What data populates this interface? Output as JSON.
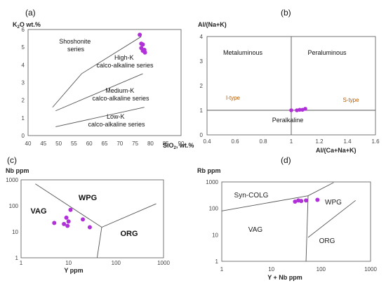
{
  "chart_data": [
    {
      "id": "a",
      "panel_label": "(a)",
      "type": "scatter",
      "xlabel_main": "SiO",
      "xlabel_sub": "2",
      "xlabel_unit": ", wt.%",
      "ylabel_main": "K",
      "ylabel_sub": "2",
      "ylabel_unit": "O  wt.%",
      "xlim": [
        40,
        90
      ],
      "ylim": [
        0,
        6
      ],
      "xticks": [
        40,
        45,
        50,
        55,
        60,
        65,
        70,
        75,
        80,
        85,
        90
      ],
      "yticks": [
        0,
        1,
        2,
        3,
        4,
        5,
        6
      ],
      "boundaries": [
        [
          [
            48,
            1.6
          ],
          [
            57.5,
            3.5
          ],
          [
            77,
            5.6
          ]
        ],
        [
          [
            49,
            1.4
          ],
          [
            77.5,
            3.5
          ]
        ],
        [
          [
            49,
            0.5
          ],
          [
            78,
            1.6
          ]
        ]
      ],
      "regions": [
        {
          "lines": [
            "Shoshonite",
            "series"
          ]
        },
        {
          "lines": [
            "High-K",
            "calco-alkaline series"
          ]
        },
        {
          "lines": [
            "Medium-K",
            "calco-alkaline series"
          ]
        },
        {
          "lines": [
            "Low-K",
            "calco-alkaline series"
          ]
        }
      ],
      "points": [
        [
          76.5,
          5.7
        ],
        [
          77.0,
          5.2
        ],
        [
          77.5,
          5.15
        ],
        [
          77.0,
          4.95
        ],
        [
          78.0,
          4.85
        ],
        [
          77.5,
          4.8
        ],
        [
          78.2,
          4.7
        ]
      ]
    },
    {
      "id": "b",
      "panel_label": "(b)",
      "type": "scatter",
      "xlabel": "Al/(Ca+Na+K)",
      "ylabel": "Al/(Na+K)",
      "xlim": [
        0.4,
        1.6
      ],
      "ylim": [
        0,
        4
      ],
      "xticks": [
        "0.4",
        "0.6",
        "0.8",
        "1",
        "1.2",
        "1.4",
        "1.6"
      ],
      "yticks": [
        0,
        1,
        2,
        3,
        4
      ],
      "regions": [
        {
          "lines": [
            "Metaluminous"
          ]
        },
        {
          "lines": [
            "Peraluminous"
          ]
        },
        {
          "lines": [
            "Peralkaline"
          ]
        },
        {
          "lines": [
            "I-type"
          ]
        },
        {
          "lines": [
            "S-type"
          ]
        }
      ],
      "points": [
        [
          1.0,
          1.0
        ],
        [
          1.04,
          1.0
        ],
        [
          1.06,
          1.02
        ],
        [
          1.08,
          1.02
        ],
        [
          1.1,
          1.06
        ]
      ]
    },
    {
      "id": "c",
      "panel_label": "(c)",
      "type": "scatter",
      "log_x": true,
      "log_y": true,
      "xlabel": "Y ppm",
      "ylabel": "Nb ppm",
      "xlim": [
        1,
        1000
      ],
      "ylim": [
        1,
        1000
      ],
      "xticks": [
        "1",
        "10",
        "100",
        "1000"
      ],
      "yticks": [
        "1",
        "10",
        "100",
        "1000"
      ],
      "regions": [
        {
          "lines": [
            "VAG"
          ]
        },
        {
          "lines": [
            "WPG"
          ]
        },
        {
          "lines": [
            "ORG"
          ]
        }
      ],
      "points": [
        [
          5,
          22
        ],
        [
          8,
          20
        ],
        [
          9,
          35
        ],
        [
          10,
          25
        ],
        [
          9.5,
          17
        ],
        [
          11,
          70
        ],
        [
          20,
          30
        ],
        [
          28,
          15
        ]
      ]
    },
    {
      "id": "d",
      "panel_label": "(d)",
      "type": "scatter",
      "log_x": true,
      "log_y": true,
      "xlabel": "Y + Nb  ppm",
      "ylabel": "Rb  ppm",
      "xlim": [
        1,
        1000
      ],
      "ylim": [
        1,
        1000
      ],
      "xticks": [
        "1",
        "10",
        "100",
        "1000"
      ],
      "yticks": [
        "1",
        "10",
        "100",
        "1000"
      ],
      "regions": [
        {
          "lines": [
            "Syn-COLG"
          ]
        },
        {
          "lines": [
            "WPG"
          ]
        },
        {
          "lines": [
            "VAG"
          ]
        },
        {
          "lines": [
            "ORG"
          ]
        }
      ],
      "points": [
        [
          30,
          180
        ],
        [
          35,
          200
        ],
        [
          40,
          190
        ],
        [
          50,
          200
        ],
        [
          85,
          210
        ]
      ]
    }
  ]
}
